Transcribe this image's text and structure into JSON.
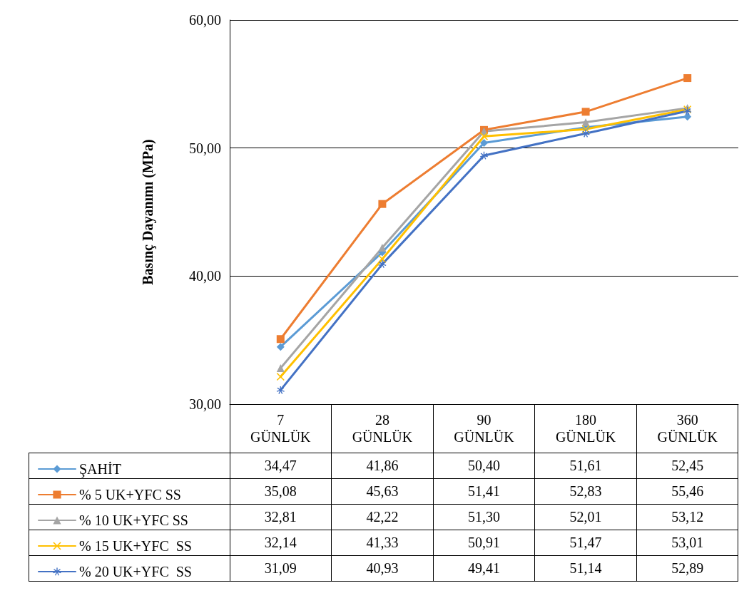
{
  "chart_data": {
    "type": "line",
    "ylabel": "Basınç Dayanımı (MPa)",
    "categories": [
      "7 GÜNLÜK",
      "28 GÜNLÜK",
      "90 GÜNLÜK",
      "180 GÜNLÜK",
      "360 GÜNLÜK"
    ],
    "ylim": [
      30,
      60
    ],
    "yticks": [
      {
        "value": 30,
        "label": "30,00"
      },
      {
        "value": 40,
        "label": "40,00"
      },
      {
        "value": 50,
        "label": "50,00"
      },
      {
        "value": 60,
        "label": "60,00"
      }
    ],
    "grid": "y",
    "legend": "bottom",
    "line_style": "solid",
    "series": [
      {
        "name": "ŞAHİT",
        "color": "#5b9bd5",
        "marker": "diamond",
        "values": [
          34.47,
          41.86,
          50.4,
          51.61,
          52.45
        ],
        "value_labels": [
          "34,47",
          "41,86",
          "50,40",
          "51,61",
          "52,45"
        ]
      },
      {
        "name": "% 5 UK+YFC SS",
        "color": "#ed7d31",
        "marker": "square",
        "values": [
          35.08,
          45.63,
          51.41,
          52.83,
          55.46
        ],
        "value_labels": [
          "35,08",
          "45,63",
          "51,41",
          "52,83",
          "55,46"
        ]
      },
      {
        "name": "% 10 UK+YFC SS",
        "color": "#a5a5a5",
        "marker": "triangle",
        "values": [
          32.81,
          42.22,
          51.3,
          52.01,
          53.12
        ],
        "value_labels": [
          "32,81",
          "42,22",
          "51,30",
          "52,01",
          "53,12"
        ]
      },
      {
        "name": "% 15 UK+YFC  SS",
        "color": "#ffc000",
        "marker": "cross",
        "values": [
          32.14,
          41.33,
          50.91,
          51.47,
          53.01
        ],
        "value_labels": [
          "32,14",
          "41,33",
          "50,91",
          "51,47",
          "53,01"
        ]
      },
      {
        "name": "% 20 UK+YFC  SS",
        "color": "#4472c4",
        "marker": "star",
        "values": [
          31.09,
          40.93,
          49.41,
          51.14,
          52.89
        ],
        "value_labels": [
          "31,09",
          "40,93",
          "49,41",
          "51,14",
          "52,89"
        ]
      }
    ]
  }
}
